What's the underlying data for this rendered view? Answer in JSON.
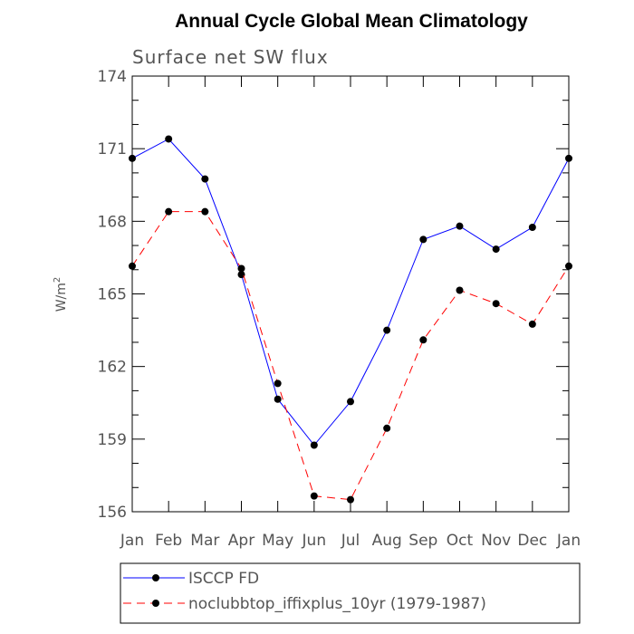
{
  "chart_data": {
    "type": "line",
    "title": "Annual Cycle Global Mean Climatology",
    "subtitle": "Surface net SW flux",
    "xlabel": "",
    "ylabel": "W/m",
    "ylabel_superscript": "2",
    "categories": [
      "Jan",
      "Feb",
      "Mar",
      "Apr",
      "May",
      "Jun",
      "Jul",
      "Aug",
      "Sep",
      "Oct",
      "Nov",
      "Dec",
      "Jan"
    ],
    "ylim": [
      156,
      174
    ],
    "yticks": [
      "156",
      "159",
      "162",
      "165",
      "168",
      "171",
      "174"
    ],
    "legend_position": "bottom",
    "series": [
      {
        "name": "ISCCP FD",
        "color": "#0000ff",
        "dash": "solid",
        "values": [
          170.6,
          171.4,
          169.75,
          165.8,
          160.65,
          158.75,
          160.55,
          163.5,
          167.25,
          167.8,
          166.85,
          167.75,
          170.6
        ]
      },
      {
        "name": "noclubbtop_iffixplus_10yr (1979-1987)",
        "color": "#ff0000",
        "dash": "dashed",
        "values": [
          166.15,
          168.4,
          168.4,
          166.05,
          161.3,
          156.65,
          156.5,
          159.45,
          163.1,
          165.15,
          164.6,
          163.75,
          166.15
        ]
      }
    ]
  }
}
